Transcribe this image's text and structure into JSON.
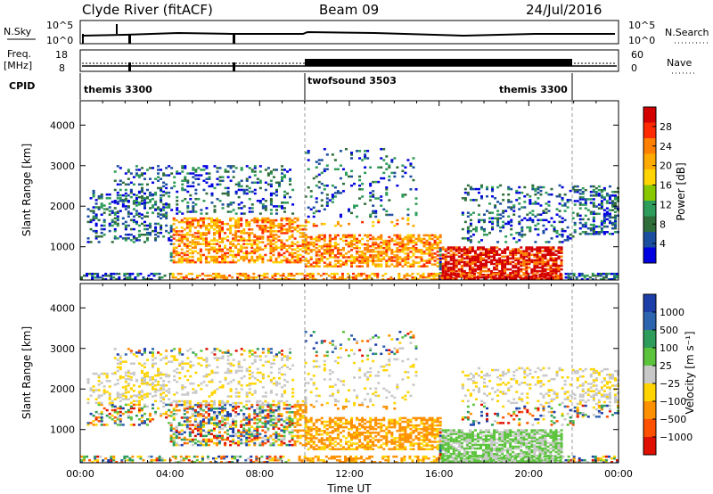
{
  "header": {
    "station": "Clyde River (fitACF)",
    "beam": "Beam 09",
    "date": "24/Jul/2016"
  },
  "strips": {
    "nsky_label": "N.Sky",
    "nsky_ticks": [
      "10^5",
      "10^0"
    ],
    "nsearch_label": "N.Search",
    "nsearch_ticks": [
      "10^5",
      "10^0"
    ],
    "freq_label": "Freq.",
    "freq_unit": "[MHz]",
    "freq_ticks": [
      "18",
      "8"
    ],
    "nave_label": "Nave",
    "nave_ticks": [
      "60",
      "0"
    ],
    "cpid_label": "CPID",
    "cpid_segments": [
      {
        "start_h": 0,
        "end_h": 10,
        "label": "themis 3300"
      },
      {
        "start_h": 10,
        "end_h": 22,
        "label": "twofsound 3503"
      },
      {
        "start_h": 22,
        "end_h": 24,
        "label": ""
      }
    ],
    "cpid_extra_label": {
      "label": "themis 3300",
      "at_h": 18.3
    }
  },
  "chart_data": [
    {
      "type": "heatmap",
      "name": "power-panel",
      "ylabel": "Slant Range [km]",
      "yticks": [
        1000,
        2000,
        3000,
        4000
      ],
      "ylim": [
        180,
        4600
      ],
      "xlim": [
        0,
        24
      ],
      "colorbar": {
        "label": "Power [dB]",
        "ticks": [
          "28",
          "24",
          "20",
          "16",
          "12",
          "8",
          "4"
        ],
        "colors": [
          "#d40000",
          "#ff2a00",
          "#ff8000",
          "#ffaa00",
          "#ffd400",
          "#88c800",
          "#2e9c5a",
          "#2f6e3a",
          "#1c4ea0",
          "#0000e0"
        ]
      }
    },
    {
      "type": "heatmap",
      "name": "velocity-panel",
      "ylabel": "Slant Range [km]",
      "yticks": [
        1000,
        2000,
        3000,
        4000
      ],
      "ylim": [
        180,
        4600
      ],
      "xlim": [
        0,
        24
      ],
      "xlabel": "Time UT",
      "xticks": [
        "00:00",
        "04:00",
        "08:00",
        "12:00",
        "16:00",
        "20:00",
        "00:00"
      ],
      "colorbar": {
        "label": "Velocity [m s⁻¹]",
        "ticks": [
          "1000",
          "500",
          "100",
          "25",
          "−25",
          "−100",
          "−500",
          "−1000"
        ],
        "colors": [
          "#1c3ea8",
          "#2d64b0",
          "#2e9c5a",
          "#5cc43c",
          "#c8c8c8",
          "#ffd400",
          "#ff9000",
          "#ff5000",
          "#e01000"
        ]
      }
    }
  ]
}
